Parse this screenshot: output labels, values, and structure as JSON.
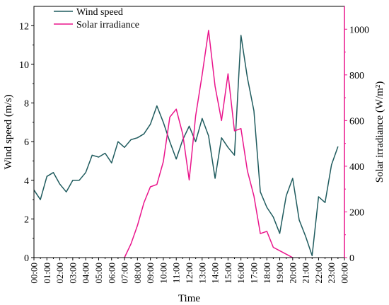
{
  "chart_data": {
    "type": "line",
    "title": "",
    "xlabel": "Time",
    "y1label": "Wind speed (m/s)",
    "y2label": "Solar irradiance (W/m²)",
    "y1lim": [
      0,
      13
    ],
    "y2lim": [
      0,
      1100
    ],
    "y1ticks": [
      "0",
      "2",
      "4",
      "6",
      "8",
      "10",
      "12"
    ],
    "y2ticks": [
      "0",
      "200",
      "400",
      "600",
      "800",
      "1000"
    ],
    "xticks": [
      "00:00",
      "01:00",
      "02:00",
      "03:00",
      "04:00",
      "05:00",
      "06:00",
      "07:00",
      "08:00",
      "09:00",
      "10:00",
      "11:00",
      "12:00",
      "13:00",
      "14:00",
      "15:00",
      "16:00",
      "17:00",
      "18:00",
      "19:00",
      "20:00",
      "21:00",
      "22:00",
      "23:00",
      "00:00"
    ],
    "legend_position": "top-left",
    "grid": false,
    "series": [
      {
        "name": "Wind speed",
        "axis": "left",
        "color": "#1f5b5e",
        "x": [
          0,
          0.5,
          1,
          1.5,
          2,
          2.5,
          3,
          3.5,
          4,
          4.5,
          5,
          5.5,
          6,
          6.5,
          7,
          7.5,
          8,
          8.5,
          9,
          9.5,
          10,
          10.5,
          11,
          11.5,
          12,
          12.5,
          13,
          13.5,
          14,
          14.5,
          15,
          15.5,
          16,
          16.5,
          17,
          17.5,
          18,
          18.5,
          19,
          19.5,
          20,
          20.5,
          21,
          21.5,
          22,
          22.5,
          23,
          23.5
        ],
        "values": [
          3.5,
          3.0,
          4.2,
          4.4,
          3.8,
          3.4,
          4.0,
          4.0,
          4.4,
          5.3,
          5.2,
          5.4,
          4.9,
          6.0,
          5.7,
          6.1,
          6.2,
          6.4,
          6.9,
          7.85,
          7.0,
          6.0,
          5.1,
          6.1,
          6.8,
          6.0,
          7.2,
          6.3,
          4.1,
          6.2,
          5.7,
          5.3,
          11.5,
          9.3,
          7.6,
          3.4,
          2.6,
          2.1,
          1.25,
          3.2,
          4.1,
          1.95,
          1.1,
          0.1,
          3.15,
          2.85,
          4.8,
          5.75
        ]
      },
      {
        "name": "Solar irradiance",
        "axis": "right",
        "color": "#ea158c",
        "x": [
          7,
          7.5,
          8,
          8.5,
          9,
          9.5,
          10,
          10.5,
          11,
          11.5,
          12,
          12.5,
          13,
          13.5,
          14,
          14.5,
          15,
          15.5,
          16,
          16.5,
          17,
          17.5,
          18,
          18.5,
          19,
          19.5,
          20
        ],
        "values": [
          0,
          60,
          140,
          240,
          310,
          320,
          420,
          615,
          650,
          540,
          340,
          620,
          800,
          995,
          750,
          600,
          805,
          555,
          565,
          380,
          270,
          105,
          115,
          45,
          30,
          15,
          0
        ]
      }
    ]
  }
}
